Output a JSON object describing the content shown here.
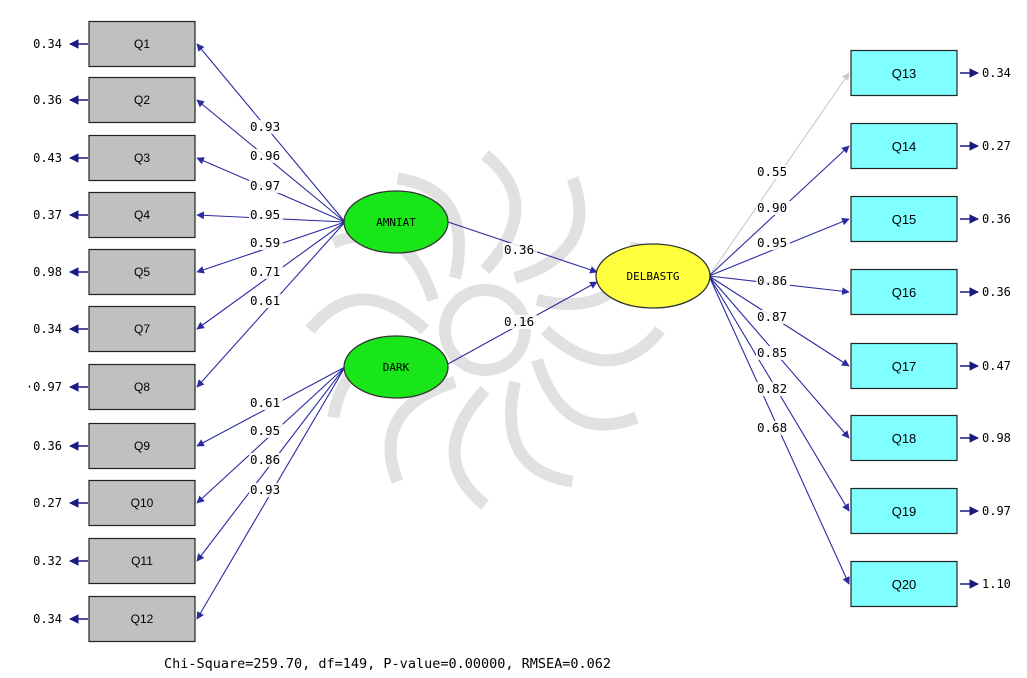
{
  "colors": {
    "observed_box": "#c0c0c0",
    "observed_box_right": "#7fffff",
    "latent_exogenous": "#19e619",
    "latent_endogenous": "#ffff3f",
    "path_line": "#2b2ba0",
    "faded_path": "#c8c8c8"
  },
  "icons": {
    "watermark": "institute-rosette-watermark",
    "error_arrow": "error-arrow-icon"
  },
  "latent": {
    "amniat": "AMNIAT",
    "dark": "DARK",
    "delbastg": "DELBASTG"
  },
  "left_indicators": [
    {
      "label": "Q1",
      "error": "0.34"
    },
    {
      "label": "Q2",
      "error": "0.36"
    },
    {
      "label": "Q3",
      "error": "0.43"
    },
    {
      "label": "Q4",
      "error": "0.37"
    },
    {
      "label": "Q5",
      "error": "0.98"
    },
    {
      "label": "Q7",
      "error": "0.34"
    },
    {
      "label": "Q8",
      "error": "·0.97"
    },
    {
      "label": "Q9",
      "error": "0.36"
    },
    {
      "label": "Q10",
      "error": "0.27"
    },
    {
      "label": "Q11",
      "error": "0.32"
    },
    {
      "label": "Q12",
      "error": "0.34"
    }
  ],
  "right_indicators": [
    {
      "label": "Q13",
      "error": "0.34"
    },
    {
      "label": "Q14",
      "error": "0.27"
    },
    {
      "label": "Q15",
      "error": "0.36"
    },
    {
      "label": "Q16",
      "error": "0.36"
    },
    {
      "label": "Q17",
      "error": "0.47"
    },
    {
      "label": "Q18",
      "error": "0.98"
    },
    {
      "label": "Q19",
      "error": "0.97"
    },
    {
      "label": "Q20",
      "error": "1.10"
    }
  ],
  "loadings_amniat": [
    "0.93",
    "0.96",
    "0.97",
    "0.95",
    "0.59",
    "0.71",
    "0.61"
  ],
  "loadings_dark": [
    "0.61",
    "0.95",
    "0.86",
    "0.93"
  ],
  "loadings_delbastg": [
    "0.55",
    "0.90",
    "0.95",
    "0.86",
    "0.87",
    "0.85",
    "0.82",
    "0.68"
  ],
  "structural_paths": {
    "amniat_to_delbastg": "0.36",
    "dark_to_delbastg": "0.16"
  },
  "fit_statistics": "Chi-Square=259.70, df=149, P-value=0.00000, RMSEA=0.062"
}
